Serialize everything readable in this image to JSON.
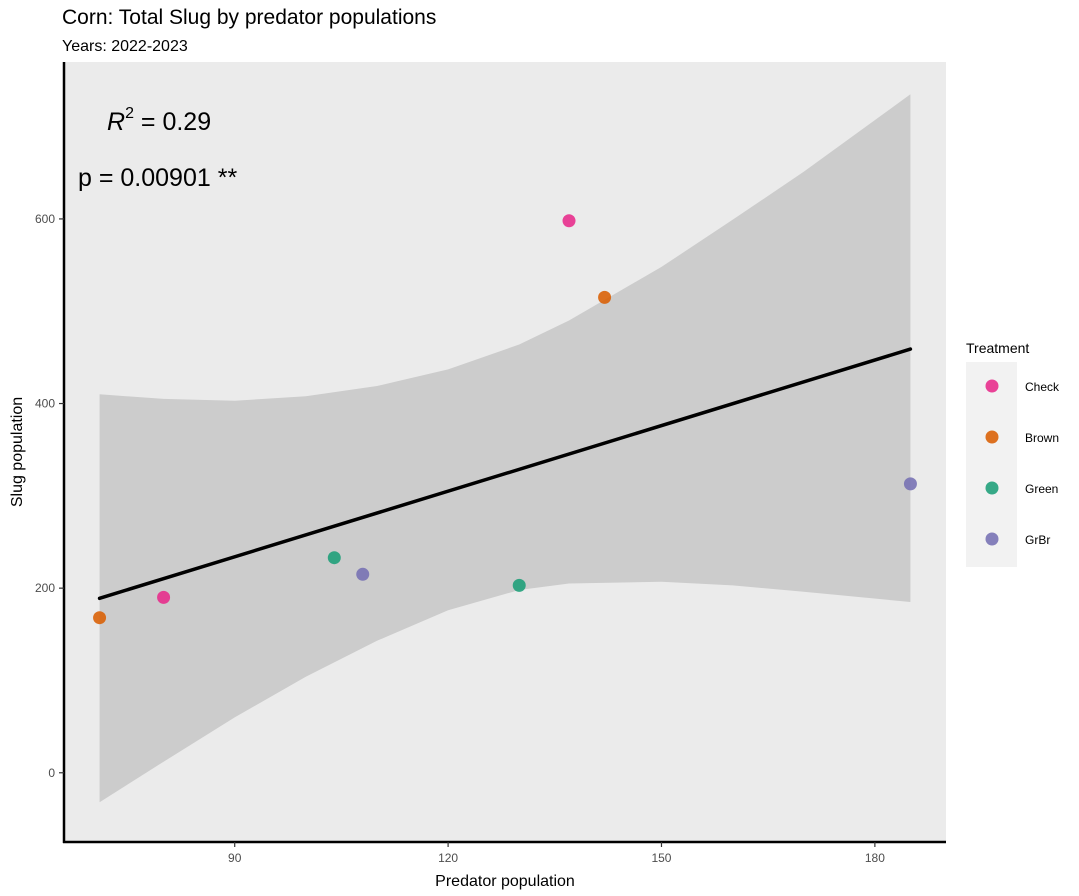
{
  "chart_data": {
    "type": "scatter",
    "title": "Corn: Total Slug by predator populations",
    "subtitle": "Years: 2022-2023",
    "xlabel": "Predator population",
    "ylabel": "Slug population",
    "xlim": [
      66,
      190
    ],
    "ylim": [
      -75,
      770
    ],
    "x_ticks": [
      90,
      120,
      150,
      180
    ],
    "y_ticks": [
      0,
      200,
      400,
      600
    ],
    "grid": false,
    "legend": {
      "title": "Treatment",
      "position": "right",
      "entries": [
        {
          "name": "Check",
          "color": "#e7298a"
        },
        {
          "name": "Brown",
          "color": "#d95f02"
        },
        {
          "name": "Green",
          "color": "#1b9e77"
        },
        {
          "name": "GrBr",
          "color": "#7570b3"
        }
      ]
    },
    "series": [
      {
        "name": "Check",
        "color": "#e7298a",
        "points": [
          {
            "x": 80,
            "y": 190
          },
          {
            "x": 137,
            "y": 598
          }
        ]
      },
      {
        "name": "Brown",
        "color": "#d95f02",
        "points": [
          {
            "x": 71,
            "y": 168
          },
          {
            "x": 142,
            "y": 515
          }
        ]
      },
      {
        "name": "Green",
        "color": "#1b9e77",
        "points": [
          {
            "x": 104,
            "y": 233
          },
          {
            "x": 130,
            "y": 203
          }
        ]
      },
      {
        "name": "GrBr",
        "color": "#7570b3",
        "points": [
          {
            "x": 108,
            "y": 215
          },
          {
            "x": 185,
            "y": 313
          }
        ]
      }
    ],
    "regression": {
      "x_start": 71,
      "x_end": 185,
      "y_start": 189,
      "y_end": 459,
      "confidence_band": {
        "x": [
          71,
          80,
          90,
          100,
          110,
          120,
          130,
          137,
          150,
          160,
          170,
          185
        ],
        "lower": [
          -32,
          12,
          60,
          104,
          143,
          176,
          198,
          205,
          207,
          203,
          196,
          185
        ],
        "upper": [
          410,
          405,
          403,
          408,
          419,
          437,
          464,
          490,
          548,
          599,
          651,
          735
        ]
      }
    },
    "annotations": {
      "r2_symbol": "R",
      "r2_exponent": "2",
      "r2_value": " = 0.29",
      "p_text": "p = 0.00901 **"
    }
  },
  "colors": {
    "panel_background": "#ebebeb",
    "band_fill": "#cccccc",
    "regression_line": "#000000",
    "legend_background": "#f2f2f2"
  }
}
